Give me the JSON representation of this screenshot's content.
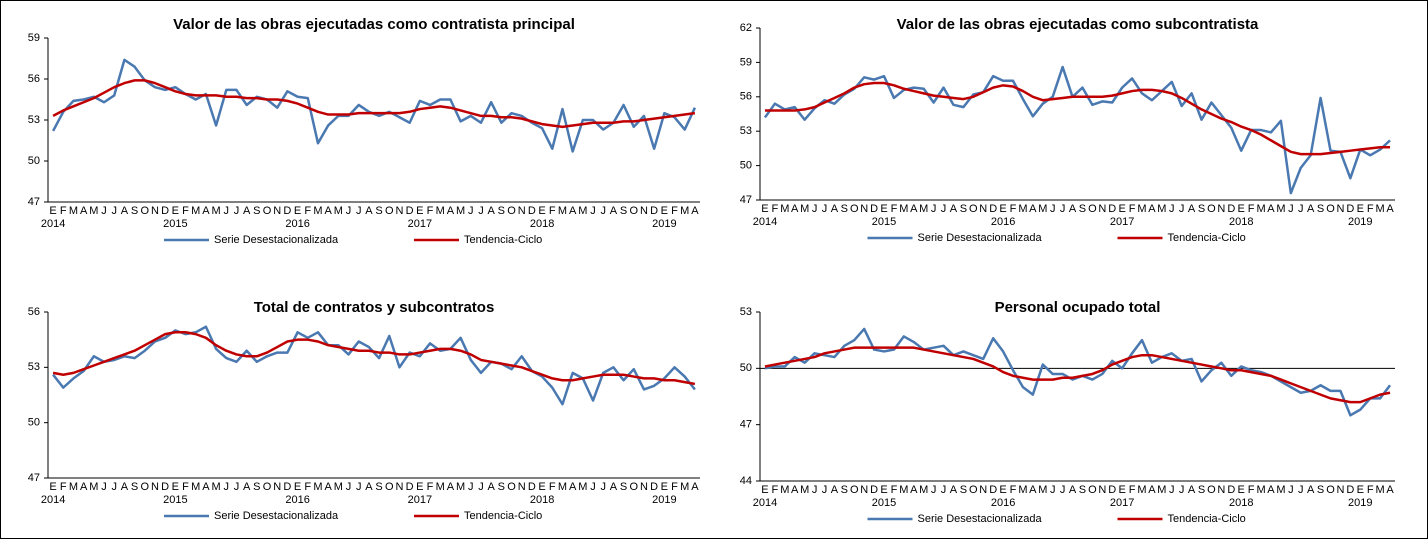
{
  "chart_data": [
    {
      "type": "line",
      "title": "Valor de las obras ejecutadas como contratista principal",
      "categories": [
        "E",
        "F",
        "M",
        "A",
        "M",
        "J",
        "J",
        "A",
        "S",
        "O",
        "N",
        "D",
        "E",
        "F",
        "M",
        "A",
        "M",
        "J",
        "J",
        "A",
        "S",
        "O",
        "N",
        "D",
        "E",
        "F",
        "M",
        "A",
        "M",
        "J",
        "J",
        "A",
        "S",
        "O",
        "N",
        "D",
        "E",
        "F",
        "M",
        "A",
        "M",
        "J",
        "J",
        "A",
        "S",
        "O",
        "N",
        "D",
        "E",
        "F",
        "M",
        "A",
        "M",
        "J",
        "J",
        "A",
        "S",
        "O",
        "N",
        "D",
        "E",
        "F",
        "M",
        "A"
      ],
      "years": [
        "2014",
        "2015",
        "2016",
        "2017",
        "2018",
        "2019"
      ],
      "ylim": [
        47,
        59
      ],
      "yticks": [
        47,
        50,
        53,
        56,
        59
      ],
      "series": [
        {
          "name": "Serie Desestacionalizada",
          "color": "#4a78b0",
          "values": [
            52.2,
            53.6,
            54.4,
            54.5,
            54.7,
            54.3,
            54.8,
            57.4,
            56.9,
            55.9,
            55.4,
            55.2,
            55.4,
            54.9,
            54.5,
            54.9,
            52.6,
            55.2,
            55.2,
            54.1,
            54.7,
            54.5,
            53.9,
            55.1,
            54.7,
            54.6,
            51.3,
            52.6,
            53.3,
            53.3,
            54.1,
            53.6,
            53.3,
            53.6,
            53.2,
            52.8,
            54.4,
            54.1,
            54.5,
            54.5,
            52.9,
            53.3,
            52.8,
            54.3,
            52.8,
            53.5,
            53.3,
            52.8,
            52.4,
            50.9,
            53.8,
            50.7,
            53.0,
            53.0,
            52.3,
            52.8,
            54.1,
            52.5,
            53.3,
            50.9,
            53.5,
            53.2,
            52.3,
            53.9
          ]
        },
        {
          "name": "Tendencia-Ciclo",
          "color": "#c00000",
          "values": [
            53.3,
            53.7,
            54.0,
            54.3,
            54.6,
            55.0,
            55.4,
            55.7,
            55.9,
            55.9,
            55.7,
            55.4,
            55.1,
            54.9,
            54.8,
            54.8,
            54.8,
            54.7,
            54.7,
            54.6,
            54.6,
            54.5,
            54.5,
            54.4,
            54.2,
            53.9,
            53.6,
            53.4,
            53.4,
            53.4,
            53.5,
            53.5,
            53.5,
            53.5,
            53.5,
            53.6,
            53.8,
            53.9,
            54.0,
            53.9,
            53.7,
            53.5,
            53.3,
            53.3,
            53.2,
            53.2,
            53.1,
            52.9,
            52.7,
            52.6,
            52.5,
            52.6,
            52.7,
            52.8,
            52.8,
            52.8,
            52.9,
            52.9,
            53.0,
            53.1,
            53.2,
            53.3,
            53.4,
            53.5
          ]
        }
      ]
    },
    {
      "type": "line",
      "title": "Valor de las obras ejecutadas como subcontratista",
      "categories": [
        "E",
        "F",
        "M",
        "A",
        "M",
        "J",
        "J",
        "A",
        "S",
        "O",
        "N",
        "D",
        "E",
        "F",
        "M",
        "A",
        "M",
        "J",
        "J",
        "A",
        "S",
        "O",
        "N",
        "D",
        "E",
        "F",
        "M",
        "A",
        "M",
        "J",
        "J",
        "A",
        "S",
        "O",
        "N",
        "D",
        "E",
        "F",
        "M",
        "A",
        "M",
        "J",
        "J",
        "A",
        "S",
        "O",
        "N",
        "D",
        "E",
        "F",
        "M",
        "A",
        "M",
        "J",
        "J",
        "A",
        "S",
        "O",
        "N",
        "D",
        "E",
        "F",
        "M",
        "A"
      ],
      "years": [
        "2014",
        "2015",
        "2016",
        "2017",
        "2018",
        "2019"
      ],
      "ylim": [
        47,
        62
      ],
      "yticks": [
        47,
        50,
        53,
        56,
        59,
        62
      ],
      "series": [
        {
          "name": "Serie Desestacionalizada",
          "color": "#4a78b0",
          "values": [
            54.2,
            55.4,
            54.9,
            55.1,
            54.0,
            55.0,
            55.7,
            55.4,
            56.2,
            56.7,
            57.7,
            57.5,
            57.8,
            55.9,
            56.6,
            56.8,
            56.7,
            55.5,
            56.8,
            55.3,
            55.1,
            56.2,
            56.4,
            57.8,
            57.4,
            57.4,
            55.8,
            54.3,
            55.4,
            56.0,
            58.6,
            56.0,
            56.8,
            55.3,
            55.6,
            55.5,
            56.8,
            57.6,
            56.3,
            55.7,
            56.5,
            57.3,
            55.2,
            56.3,
            54.0,
            55.5,
            54.4,
            53.3,
            51.3,
            53.1,
            53.1,
            52.9,
            53.9,
            47.6,
            49.8,
            50.9,
            55.9,
            51.3,
            51.2,
            48.9,
            51.4,
            50.9,
            51.4,
            52.2
          ]
        },
        {
          "name": "Tendencia-Ciclo",
          "color": "#c00000",
          "values": [
            54.8,
            54.8,
            54.8,
            54.8,
            54.9,
            55.1,
            55.5,
            55.9,
            56.3,
            56.8,
            57.1,
            57.2,
            57.2,
            57.0,
            56.7,
            56.5,
            56.3,
            56.1,
            56.0,
            55.9,
            55.8,
            56.0,
            56.4,
            56.8,
            57.0,
            56.9,
            56.5,
            56.0,
            55.7,
            55.8,
            55.9,
            56.0,
            56.0,
            56.0,
            56.0,
            56.1,
            56.3,
            56.5,
            56.6,
            56.6,
            56.5,
            56.3,
            55.9,
            55.4,
            54.9,
            54.5,
            54.1,
            53.8,
            53.4,
            53.1,
            52.7,
            52.2,
            51.7,
            51.2,
            51.0,
            51.0,
            51.0,
            51.1,
            51.2,
            51.3,
            51.4,
            51.5,
            51.6,
            51.6
          ]
        }
      ]
    },
    {
      "type": "line",
      "title": "Total de contratos y subcontratos",
      "categories": [
        "E",
        "F",
        "M",
        "A",
        "M",
        "J",
        "J",
        "A",
        "S",
        "O",
        "N",
        "D",
        "E",
        "F",
        "M",
        "A",
        "M",
        "J",
        "J",
        "A",
        "S",
        "O",
        "N",
        "D",
        "E",
        "F",
        "M",
        "A",
        "M",
        "J",
        "J",
        "A",
        "S",
        "O",
        "N",
        "D",
        "E",
        "F",
        "M",
        "A",
        "M",
        "J",
        "J",
        "A",
        "S",
        "O",
        "N",
        "D",
        "E",
        "F",
        "M",
        "A",
        "M",
        "J",
        "J",
        "A",
        "S",
        "O",
        "N",
        "D",
        "E",
        "F",
        "M",
        "A"
      ],
      "years": [
        "2014",
        "2015",
        "2016",
        "2017",
        "2018",
        "2019"
      ],
      "ylim": [
        47,
        56
      ],
      "yticks": [
        47,
        50,
        53,
        56
      ],
      "series": [
        {
          "name": "Serie Desestacionalizada",
          "color": "#4a78b0",
          "values": [
            52.6,
            51.9,
            52.4,
            52.8,
            53.6,
            53.3,
            53.4,
            53.6,
            53.5,
            53.9,
            54.4,
            54.6,
            55.0,
            54.8,
            54.9,
            55.2,
            54.0,
            53.5,
            53.3,
            53.9,
            53.3,
            53.6,
            53.8,
            53.8,
            54.9,
            54.6,
            54.9,
            54.2,
            54.2,
            53.7,
            54.4,
            54.1,
            53.5,
            54.7,
            53.0,
            53.8,
            53.6,
            54.3,
            53.9,
            54.0,
            54.6,
            53.4,
            52.7,
            53.3,
            53.2,
            52.9,
            53.6,
            52.8,
            52.5,
            51.9,
            51.0,
            52.7,
            52.4,
            51.2,
            52.7,
            53.0,
            52.3,
            52.9,
            51.8,
            52.0,
            52.4,
            53.0,
            52.5,
            51.8
          ]
        },
        {
          "name": "Tendencia-Ciclo",
          "color": "#c00000",
          "values": [
            52.7,
            52.6,
            52.7,
            52.9,
            53.1,
            53.3,
            53.5,
            53.7,
            53.9,
            54.2,
            54.5,
            54.8,
            54.9,
            54.9,
            54.8,
            54.6,
            54.2,
            53.9,
            53.7,
            53.6,
            53.6,
            53.8,
            54.1,
            54.4,
            54.5,
            54.5,
            54.4,
            54.2,
            54.1,
            54.0,
            53.9,
            53.9,
            53.8,
            53.8,
            53.7,
            53.7,
            53.8,
            53.9,
            54.0,
            54.0,
            53.9,
            53.7,
            53.4,
            53.3,
            53.2,
            53.1,
            53.0,
            52.8,
            52.6,
            52.4,
            52.3,
            52.3,
            52.4,
            52.5,
            52.6,
            52.6,
            52.6,
            52.5,
            52.4,
            52.4,
            52.3,
            52.3,
            52.2,
            52.1
          ]
        }
      ]
    },
    {
      "type": "line",
      "title": "Personal ocupado total",
      "categories": [
        "E",
        "F",
        "M",
        "A",
        "M",
        "J",
        "J",
        "A",
        "S",
        "O",
        "N",
        "D",
        "E",
        "F",
        "M",
        "A",
        "M",
        "J",
        "J",
        "A",
        "S",
        "O",
        "N",
        "D",
        "E",
        "F",
        "M",
        "A",
        "M",
        "J",
        "J",
        "A",
        "S",
        "O",
        "N",
        "D",
        "E",
        "F",
        "M",
        "A",
        "M",
        "J",
        "J",
        "A",
        "S",
        "O",
        "N",
        "D",
        "E",
        "F",
        "M",
        "A",
        "M",
        "J",
        "J",
        "A",
        "S",
        "O",
        "N",
        "D",
        "E",
        "F",
        "M",
        "A"
      ],
      "years": [
        "2014",
        "2015",
        "2016",
        "2017",
        "2018",
        "2019"
      ],
      "ylim": [
        44,
        53
      ],
      "yticks": [
        44,
        47,
        50,
        53
      ],
      "hline": 50,
      "series": [
        {
          "name": "Serie Desestacionalizada",
          "color": "#4a78b0",
          "values": [
            50.0,
            50.1,
            50.1,
            50.6,
            50.3,
            50.8,
            50.7,
            50.6,
            51.2,
            51.5,
            52.1,
            51.0,
            50.9,
            51.0,
            51.7,
            51.4,
            51.0,
            51.1,
            51.2,
            50.7,
            50.9,
            50.7,
            50.5,
            51.6,
            50.9,
            49.9,
            49.0,
            48.6,
            50.2,
            49.7,
            49.7,
            49.4,
            49.6,
            49.4,
            49.7,
            50.4,
            50.0,
            50.8,
            51.5,
            50.3,
            50.6,
            50.8,
            50.4,
            50.5,
            49.3,
            49.9,
            50.3,
            49.6,
            50.1,
            49.9,
            49.8,
            49.6,
            49.3,
            49.0,
            48.7,
            48.8,
            49.1,
            48.8,
            48.8,
            47.5,
            47.8,
            48.4,
            48.4,
            49.1
          ]
        },
        {
          "name": "Tendencia-Ciclo",
          "color": "#c00000",
          "values": [
            50.1,
            50.2,
            50.3,
            50.4,
            50.5,
            50.6,
            50.8,
            50.9,
            51.0,
            51.1,
            51.1,
            51.1,
            51.1,
            51.1,
            51.1,
            51.1,
            51.0,
            50.9,
            50.8,
            50.7,
            50.6,
            50.5,
            50.3,
            50.1,
            49.8,
            49.6,
            49.5,
            49.4,
            49.4,
            49.4,
            49.5,
            49.5,
            49.6,
            49.7,
            49.9,
            50.2,
            50.4,
            50.6,
            50.7,
            50.7,
            50.6,
            50.5,
            50.4,
            50.3,
            50.2,
            50.1,
            50.0,
            49.9,
            49.9,
            49.8,
            49.7,
            49.6,
            49.4,
            49.2,
            49.0,
            48.8,
            48.6,
            48.4,
            48.3,
            48.2,
            48.2,
            48.4,
            48.6,
            48.7
          ]
        }
      ]
    }
  ]
}
